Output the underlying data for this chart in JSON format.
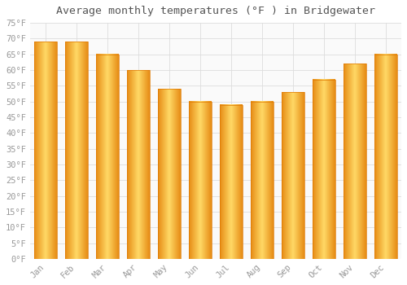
{
  "title": "Average monthly temperatures (°F ) in Bridgewater",
  "months": [
    "Jan",
    "Feb",
    "Mar",
    "Apr",
    "May",
    "Jun",
    "Jul",
    "Aug",
    "Sep",
    "Oct",
    "Nov",
    "Dec"
  ],
  "values": [
    69,
    69,
    65,
    60,
    54,
    50,
    49,
    50,
    53,
    57,
    62,
    65
  ],
  "bar_color_main": "#FFB300",
  "bar_color_light": "#FFD966",
  "bar_color_dark": "#E07800",
  "background_color": "#FFFFFF",
  "plot_bg_color": "#FAFAFA",
  "grid_color": "#DDDDDD",
  "ylim": [
    0,
    75
  ],
  "ytick_step": 5,
  "title_fontsize": 9.5,
  "tick_fontsize": 7.5,
  "tick_color": "#999999",
  "title_color": "#555555",
  "font_family": "monospace"
}
